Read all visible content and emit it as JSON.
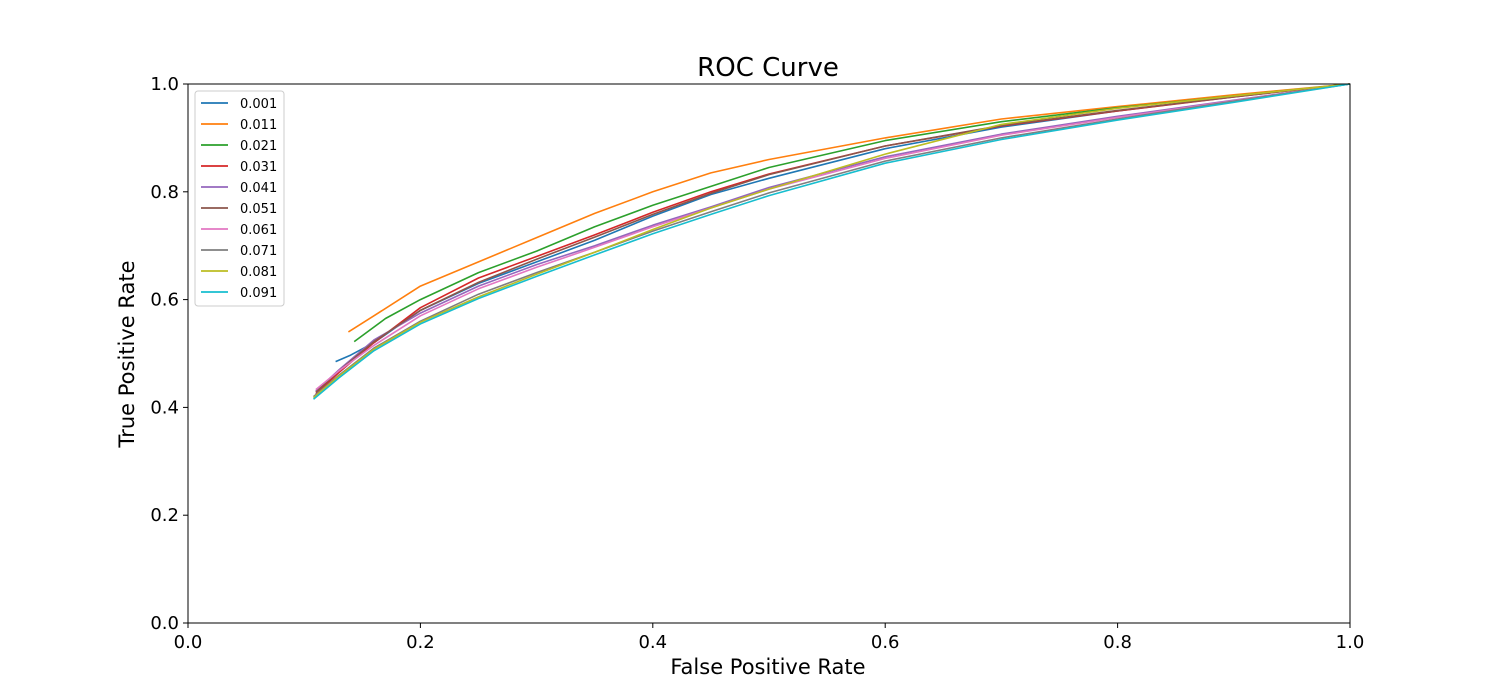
{
  "chart_data": {
    "type": "line",
    "title": "ROC Curve",
    "xlabel": "False Positive Rate",
    "ylabel": "True Positive Rate",
    "xlim": [
      0.0,
      1.0
    ],
    "ylim": [
      0.0,
      1.0
    ],
    "grid": false,
    "legend_position": "upper-left",
    "x_ticks": [
      "0.0",
      "0.2",
      "0.4",
      "0.6",
      "0.8",
      "1.0"
    ],
    "y_ticks": [
      "0.0",
      "0.2",
      "0.4",
      "0.6",
      "0.8",
      "1.0"
    ],
    "series": [
      {
        "name": "0.001",
        "color": "#1f77b4",
        "x": [
          0.127,
          0.14,
          0.16,
          0.2,
          0.25,
          0.3,
          0.35,
          0.4,
          0.45,
          0.5,
          0.6,
          0.7,
          0.8,
          0.9,
          1.0
        ],
        "y": [
          0.485,
          0.497,
          0.52,
          0.58,
          0.63,
          0.67,
          0.71,
          0.755,
          0.795,
          0.825,
          0.88,
          0.92,
          0.95,
          0.977,
          1.0
        ]
      },
      {
        "name": "0.011",
        "color": "#ff7f0e",
        "x": [
          0.138,
          0.16,
          0.2,
          0.25,
          0.3,
          0.35,
          0.4,
          0.45,
          0.5,
          0.6,
          0.7,
          0.8,
          0.9,
          1.0
        ],
        "y": [
          0.54,
          0.57,
          0.625,
          0.67,
          0.715,
          0.76,
          0.8,
          0.835,
          0.86,
          0.9,
          0.935,
          0.958,
          0.98,
          1.0
        ]
      },
      {
        "name": "0.021",
        "color": "#2ca02c",
        "x": [
          0.143,
          0.17,
          0.2,
          0.25,
          0.3,
          0.35,
          0.4,
          0.45,
          0.5,
          0.6,
          0.7,
          0.8,
          0.9,
          1.0
        ],
        "y": [
          0.522,
          0.565,
          0.6,
          0.65,
          0.69,
          0.735,
          0.775,
          0.81,
          0.845,
          0.895,
          0.93,
          0.956,
          0.978,
          1.0
        ]
      },
      {
        "name": "0.031",
        "color": "#d62728",
        "x": [
          0.11,
          0.13,
          0.16,
          0.2,
          0.25,
          0.3,
          0.35,
          0.4,
          0.45,
          0.5,
          0.6,
          0.7,
          0.8,
          0.9,
          1.0
        ],
        "y": [
          0.425,
          0.465,
          0.52,
          0.585,
          0.64,
          0.68,
          0.72,
          0.762,
          0.8,
          0.833,
          0.885,
          0.922,
          0.95,
          0.976,
          1.0
        ]
      },
      {
        "name": "0.041",
        "color": "#9467bd",
        "x": [
          0.11,
          0.13,
          0.16,
          0.2,
          0.25,
          0.3,
          0.35,
          0.4,
          0.45,
          0.5,
          0.6,
          0.7,
          0.8,
          0.9,
          1.0
        ],
        "y": [
          0.43,
          0.47,
          0.525,
          0.575,
          0.625,
          0.665,
          0.7,
          0.738,
          0.772,
          0.808,
          0.865,
          0.907,
          0.94,
          0.97,
          1.0
        ]
      },
      {
        "name": "0.051",
        "color": "#8c564b",
        "x": [
          0.11,
          0.13,
          0.16,
          0.2,
          0.25,
          0.3,
          0.35,
          0.4,
          0.45,
          0.5,
          0.6,
          0.7,
          0.8,
          0.9,
          1.0
        ],
        "y": [
          0.428,
          0.468,
          0.522,
          0.58,
          0.632,
          0.675,
          0.716,
          0.758,
          0.797,
          0.832,
          0.885,
          0.923,
          0.951,
          0.976,
          1.0
        ]
      },
      {
        "name": "0.061",
        "color": "#e377c2",
        "x": [
          0.11,
          0.13,
          0.16,
          0.2,
          0.25,
          0.3,
          0.35,
          0.4,
          0.45,
          0.5,
          0.6,
          0.7,
          0.8,
          0.9,
          1.0
        ],
        "y": [
          0.433,
          0.468,
          0.515,
          0.57,
          0.62,
          0.66,
          0.697,
          0.735,
          0.77,
          0.805,
          0.862,
          0.905,
          0.938,
          0.969,
          1.0
        ]
      },
      {
        "name": "0.071",
        "color": "#7f7f7f",
        "x": [
          0.108,
          0.13,
          0.16,
          0.2,
          0.25,
          0.3,
          0.35,
          0.4,
          0.45,
          0.5,
          0.6,
          0.7,
          0.8,
          0.9,
          1.0
        ],
        "y": [
          0.42,
          0.46,
          0.51,
          0.56,
          0.61,
          0.65,
          0.688,
          0.727,
          0.763,
          0.798,
          0.857,
          0.9,
          0.935,
          0.968,
          1.0
        ]
      },
      {
        "name": "0.081",
        "color": "#bcbd22",
        "x": [
          0.108,
          0.13,
          0.16,
          0.2,
          0.25,
          0.3,
          0.35,
          0.4,
          0.45,
          0.5,
          0.6,
          0.7,
          0.8,
          0.9,
          1.0
        ],
        "y": [
          0.418,
          0.458,
          0.508,
          0.558,
          0.605,
          0.647,
          0.688,
          0.73,
          0.77,
          0.805,
          0.87,
          0.925,
          0.955,
          0.978,
          1.0
        ]
      },
      {
        "name": "0.091",
        "color": "#17becf",
        "x": [
          0.108,
          0.13,
          0.16,
          0.2,
          0.25,
          0.3,
          0.35,
          0.4,
          0.45,
          0.5,
          0.6,
          0.7,
          0.8,
          0.9,
          1.0
        ],
        "y": [
          0.415,
          0.455,
          0.505,
          0.555,
          0.602,
          0.643,
          0.683,
          0.722,
          0.758,
          0.793,
          0.853,
          0.897,
          0.933,
          0.966,
          1.0
        ]
      }
    ]
  }
}
